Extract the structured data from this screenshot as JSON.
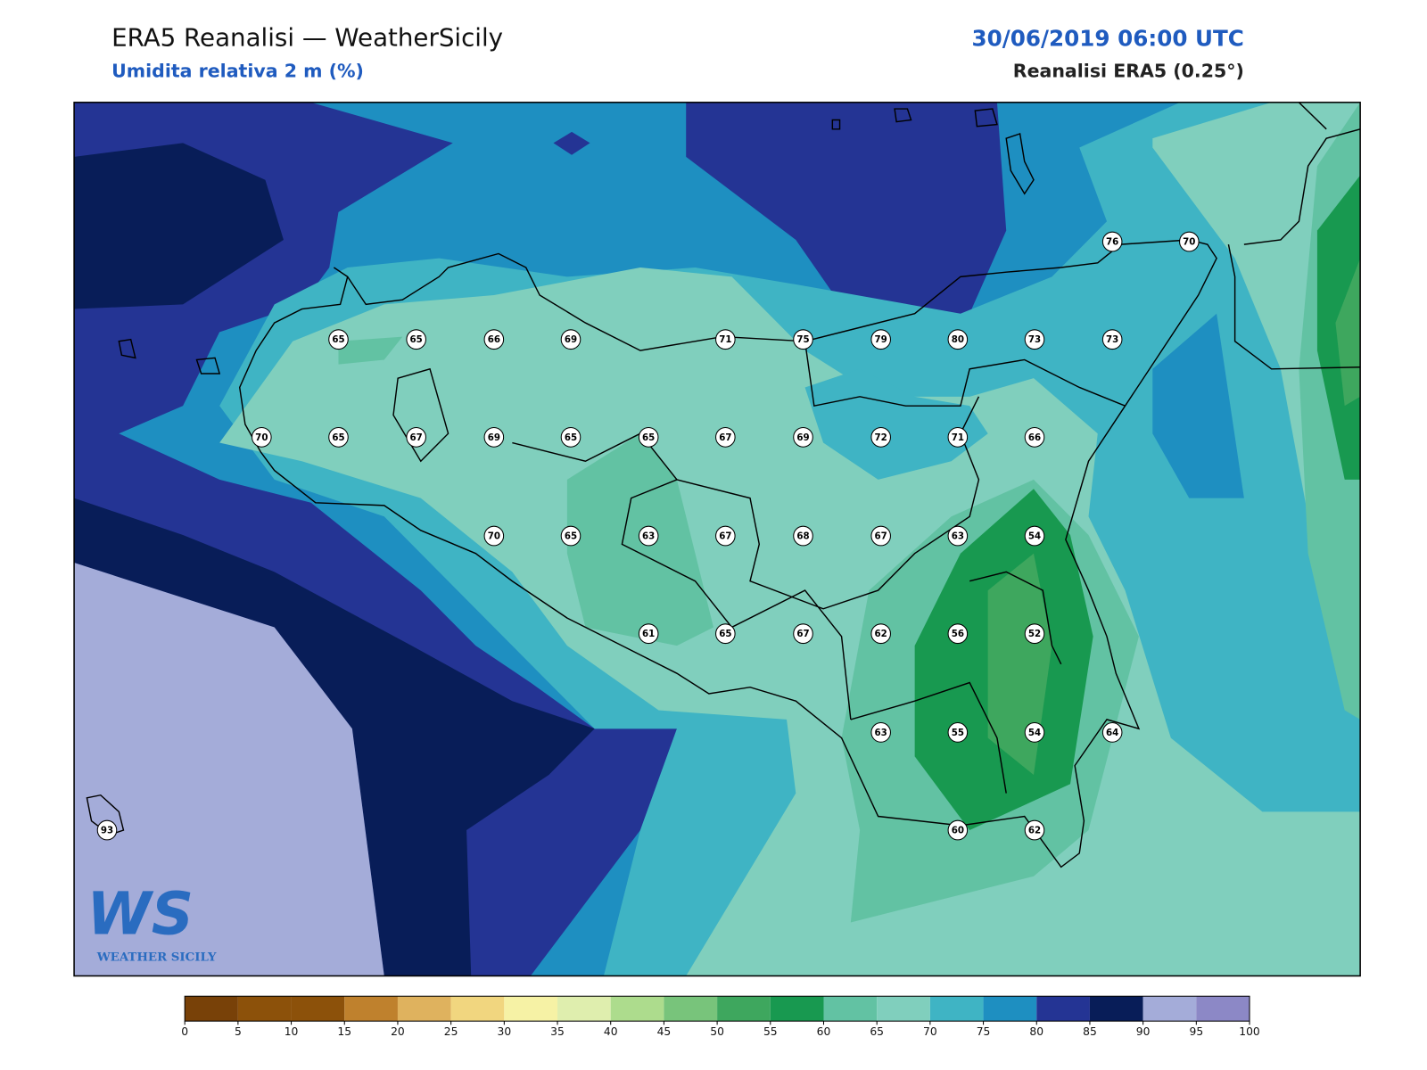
{
  "header": {
    "title": "ERA5 Reanalisi — WeatherSicily",
    "subtitle": "Umidita relativa 2 m (%)",
    "datetime": "30/06/2019 06:00 UTC",
    "source": "Reanalisi ERA5 (0.25°)"
  },
  "stations": [
    76,
    70,
    65,
    65,
    66,
    69,
    71,
    75,
    79,
    80,
    73,
    73,
    70,
    65,
    67,
    69,
    65,
    65,
    67,
    69,
    72,
    71,
    66,
    70,
    65,
    63,
    67,
    68,
    67,
    63,
    54,
    61,
    65,
    67,
    62,
    56,
    52,
    63,
    55,
    54,
    64,
    93,
    60,
    62
  ],
  "colorbar": {
    "ticks": [
      0,
      5,
      10,
      15,
      20,
      25,
      30,
      35,
      40,
      45,
      50,
      55,
      60,
      65,
      70,
      75,
      80,
      85,
      90,
      95,
      100
    ],
    "colors": [
      "#784108",
      "#8c510a",
      "#8c510a",
      "#bf812d",
      "#dfb25e",
      "#f1d67f",
      "#f6f2a5",
      "#dfeeae",
      "#addc8d",
      "#78c47b",
      "#3ea75e",
      "#189950",
      "#62c2a3",
      "#80cfbd",
      "#3fb4c4",
      "#1e8fc1",
      "#243494",
      "#081d58",
      "#a4acd9",
      "#8c88c6"
    ]
  },
  "logo": {
    "mark": "WS",
    "text": "WEATHER SICILY"
  }
}
